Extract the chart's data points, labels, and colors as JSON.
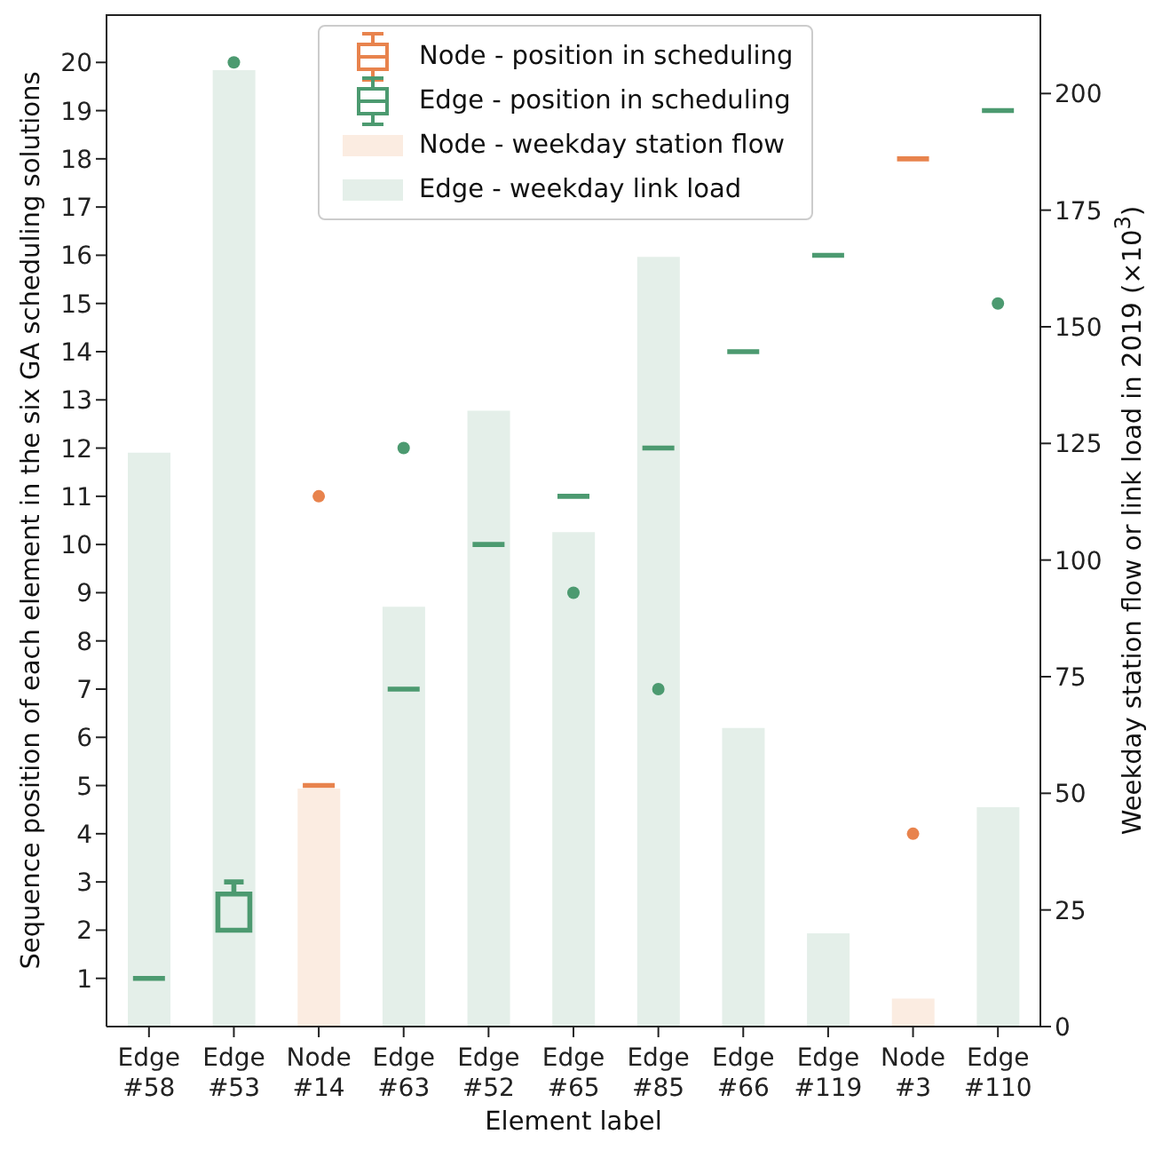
{
  "chart_data": {
    "type": "box",
    "xlabel": "Element label",
    "ylabel": "Sequence position of each element in the six GA scheduling solutions",
    "y2label": "Weekday station flow or link load in 2019 (×10$^{3}$)",
    "categories": [
      "Edge #58",
      "Edge #53",
      "Node #14",
      "Edge #63",
      "Edge #52",
      "Edge #65",
      "Edge #85",
      "Edge #66",
      "Edge #119",
      "Node #3",
      "Edge #110"
    ],
    "ylim": [
      0,
      21
    ],
    "yticks": [
      1,
      2,
      3,
      4,
      5,
      6,
      7,
      8,
      9,
      10,
      11,
      12,
      13,
      14,
      15,
      16,
      17,
      18,
      19,
      20
    ],
    "y2lim": [
      0,
      217
    ],
    "y2ticks": [
      0,
      25,
      50,
      75,
      100,
      125,
      150,
      175,
      200
    ],
    "grid": false,
    "legend": "top",
    "series": [
      {
        "name": "Node - position in scheduling",
        "type": "box",
        "color": "#e8834d",
        "boxes": [
          null,
          null,
          {
            "low": 5,
            "q1": 5,
            "median": 5,
            "q3": 5,
            "high": 5,
            "outliers": [
              11
            ]
          },
          null,
          null,
          null,
          null,
          null,
          null,
          {
            "low": 18,
            "q1": 18,
            "median": 18,
            "q3": 18,
            "high": 18,
            "outliers": [
              4
            ]
          },
          null
        ]
      },
      {
        "name": "Edge - position in scheduling",
        "type": "box",
        "color": "#4c9a70",
        "boxes": [
          {
            "low": 1,
            "q1": 1,
            "median": 1,
            "q3": 1,
            "high": 1
          },
          {
            "low": 2,
            "q1": 2,
            "median": 2,
            "q3": 2.75,
            "high": 3,
            "outliers": [
              20
            ]
          },
          null,
          {
            "low": 7,
            "q1": 7,
            "median": 7,
            "q3": 7,
            "high": 7,
            "outliers": [
              12
            ]
          },
          {
            "low": 10,
            "q1": 10,
            "median": 10,
            "q3": 10,
            "high": 10
          },
          {
            "low": 11,
            "q1": 11,
            "median": 11,
            "q3": 11,
            "high": 11,
            "outliers": [
              9
            ]
          },
          {
            "low": 12,
            "q1": 12,
            "median": 12,
            "q3": 12,
            "high": 12,
            "outliers": [
              7
            ]
          },
          {
            "low": 14,
            "q1": 14,
            "median": 14,
            "q3": 14,
            "high": 14
          },
          {
            "low": 16,
            "q1": 16,
            "median": 16,
            "q3": 16,
            "high": 16
          },
          null,
          {
            "low": 19,
            "q1": 19,
            "median": 19,
            "q3": 19,
            "high": 19,
            "outliers": [
              15
            ]
          }
        ]
      },
      {
        "name": "Node - weekday station flow",
        "type": "bar",
        "axis": "y2",
        "color": "#fbece1",
        "values": [
          null,
          null,
          51,
          null,
          null,
          null,
          null,
          null,
          null,
          6,
          null
        ]
      },
      {
        "name": "Edge - weekday link load",
        "type": "bar",
        "axis": "y2",
        "color": "#e4efe9",
        "values": [
          123,
          205,
          null,
          90,
          132,
          106,
          165,
          64,
          20,
          null,
          47
        ]
      }
    ]
  }
}
